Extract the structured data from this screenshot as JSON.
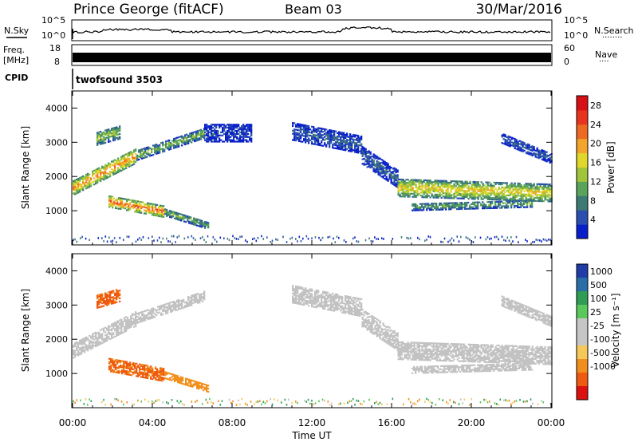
{
  "header": {
    "station": "Prince George (fitACF)",
    "beam": "Beam 03",
    "date": "30/Mar/2016"
  },
  "noise_panel": {
    "left_label": "N.Sky",
    "right_label": "N.Search",
    "right_style": "········",
    "tick_top": "10^5",
    "tick_bottom": "10^0"
  },
  "freq_panel": {
    "left_label_1": "Freq.",
    "left_label_2": "[MHz]",
    "right_label": "Nave",
    "right_style": "····",
    "left_ticks": [
      "18",
      "8"
    ],
    "right_ticks": [
      "60",
      "0"
    ]
  },
  "cpid": {
    "label": "CPID",
    "program": "twofsound 3503"
  },
  "colors": {
    "power_scale": [
      "#0a1fcc",
      "#2a4fb0",
      "#3d7a73",
      "#59a35b",
      "#a0c43a",
      "#e0d72a",
      "#f3a52b",
      "#ec6a22",
      "#e8341e",
      "#d80f17"
    ],
    "velocity_scale": [
      "#dd1010",
      "#ee5a10",
      "#f28f1c",
      "#f5c85a",
      "#c6c6c6",
      "#c6c6c6",
      "#5ac85a",
      "#2f9d55",
      "#2a6ea8",
      "#1f3ca8"
    ],
    "ground_scatter": "#c2c2c2"
  },
  "chart_data": [
    {
      "type": "heatmap",
      "title": "Power",
      "xlabel": "Time UT",
      "ylabel": "Slant Range [km]",
      "colorbar_label": "Power [dB]",
      "colorbar_ticks": [
        "4",
        "8",
        "12",
        "16",
        "20",
        "24",
        "28"
      ],
      "ylim": [
        0,
        4500
      ],
      "yticks": [
        "1000",
        "2000",
        "3000",
        "4000"
      ],
      "xlim": [
        0,
        24
      ],
      "xticks": [
        "00:00",
        "04:00",
        "08:00",
        "12:00",
        "16:00",
        "20:00",
        "00:00"
      ],
      "bands": [
        {
          "t0": 0.0,
          "t1": 3.2,
          "r_start": 1650,
          "r_end": 2600,
          "width": 420,
          "power": 24
        },
        {
          "t0": 3.2,
          "t1": 6.6,
          "r_start": 2600,
          "r_end": 3250,
          "width": 280,
          "power": 14
        },
        {
          "t0": 6.6,
          "t1": 9.0,
          "r_start": 3250,
          "r_end": 3250,
          "width": 500,
          "power": 6
        },
        {
          "t0": 1.8,
          "t1": 4.6,
          "r_start": 1250,
          "r_end": 950,
          "width": 320,
          "power": 26
        },
        {
          "t0": 4.6,
          "t1": 6.8,
          "r_start": 950,
          "r_end": 550,
          "width": 220,
          "power": 14
        },
        {
          "t0": 1.2,
          "t1": 2.4,
          "r_start": 3100,
          "r_end": 3300,
          "width": 400,
          "power": 16
        },
        {
          "t0": 11.0,
          "t1": 14.5,
          "r_start": 3300,
          "r_end": 2900,
          "width": 500,
          "power": 8
        },
        {
          "t0": 14.5,
          "t1": 16.3,
          "r_start": 2600,
          "r_end": 1900,
          "width": 500,
          "power": 8
        },
        {
          "t0": 16.3,
          "t1": 24.0,
          "r_start": 1650,
          "r_end": 1500,
          "width": 500,
          "power": 20
        },
        {
          "t0": 17.0,
          "t1": 23.0,
          "r_start": 1100,
          "r_end": 1200,
          "width": 220,
          "power": 13
        },
        {
          "t0": 21.5,
          "t1": 24.0,
          "r_start": 3100,
          "r_end": 2500,
          "width": 280,
          "power": 8
        }
      ]
    },
    {
      "type": "heatmap",
      "title": "Velocity",
      "xlabel": "Time UT",
      "ylabel": "Slant Range [km]",
      "colorbar_label": "Velocity [m s⁻¹]",
      "colorbar_ticks": [
        "-1000",
        "-500",
        "-100",
        "-25",
        "25",
        "100",
        "500",
        "1000"
      ],
      "ylim": [
        0,
        4500
      ],
      "yticks": [
        "1000",
        "2000",
        "3000",
        "4000"
      ],
      "xlim": [
        0,
        24
      ],
      "xticks": [
        "00:00",
        "04:00",
        "08:00",
        "12:00",
        "16:00",
        "20:00",
        "00:00"
      ],
      "bands": [
        {
          "t0": 0.0,
          "t1": 3.2,
          "r_start": 1650,
          "r_end": 2600,
          "width": 420,
          "velocity": 0
        },
        {
          "t0": 3.2,
          "t1": 6.6,
          "r_start": 2600,
          "r_end": 3250,
          "width": 280,
          "velocity": 0
        },
        {
          "t0": 1.8,
          "t1": 4.6,
          "r_start": 1250,
          "r_end": 950,
          "width": 400,
          "velocity": -600
        },
        {
          "t0": 4.6,
          "t1": 6.8,
          "r_start": 950,
          "r_end": 550,
          "width": 220,
          "velocity": -300
        },
        {
          "t0": 1.2,
          "t1": 2.4,
          "r_start": 3100,
          "r_end": 3300,
          "width": 400,
          "velocity": -700
        },
        {
          "t0": 11.0,
          "t1": 14.5,
          "r_start": 3300,
          "r_end": 2900,
          "width": 500,
          "velocity": 0
        },
        {
          "t0": 14.5,
          "t1": 16.3,
          "r_start": 2600,
          "r_end": 1900,
          "width": 500,
          "velocity": 0
        },
        {
          "t0": 16.3,
          "t1": 24.0,
          "r_start": 1650,
          "r_end": 1500,
          "width": 500,
          "velocity": 0
        },
        {
          "t0": 17.0,
          "t1": 23.0,
          "r_start": 1100,
          "r_end": 1200,
          "width": 220,
          "velocity": 0
        },
        {
          "t0": 21.5,
          "t1": 24.0,
          "r_start": 3100,
          "r_end": 2500,
          "width": 280,
          "velocity": 0
        }
      ]
    }
  ]
}
